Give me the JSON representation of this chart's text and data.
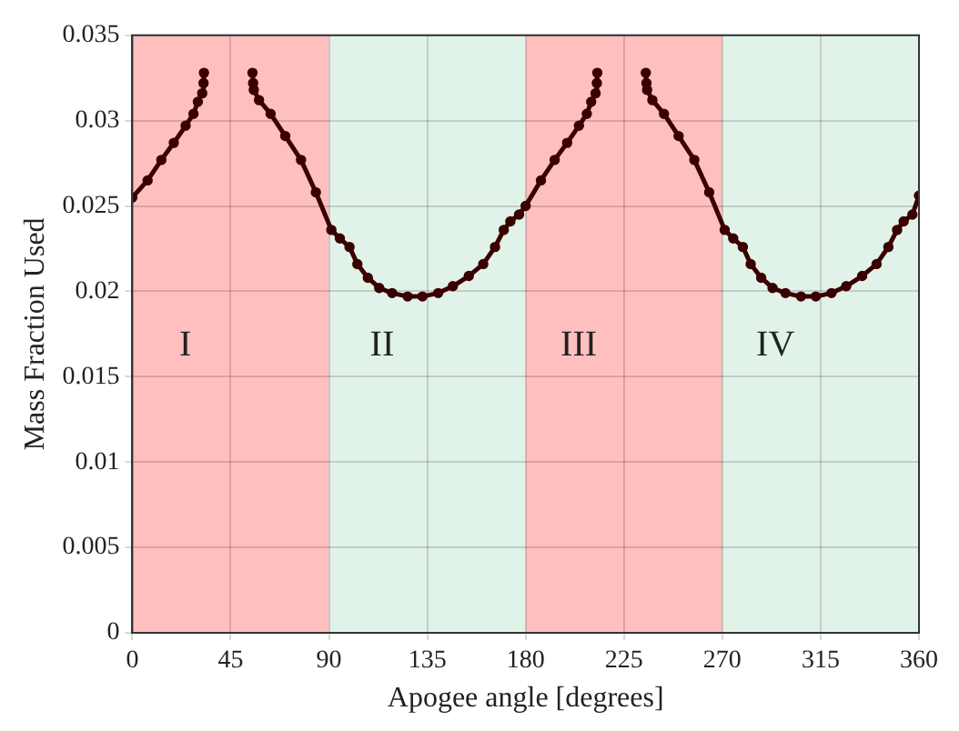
{
  "chart_data": {
    "type": "line",
    "xlabel": "Apogee angle [degrees]",
    "ylabel": "Mass Fraction Used",
    "xlim": [
      0,
      360
    ],
    "xticks": [
      0,
      45,
      90,
      135,
      180,
      225,
      270,
      315,
      360
    ],
    "ylim": [
      0,
      0.035
    ],
    "yticks": [
      0,
      0.005,
      0.01,
      0.015,
      0.02,
      0.025,
      0.03,
      0.035
    ],
    "grid": true,
    "legend": false,
    "marker": "circle",
    "line_style": "solid",
    "bands": [
      {
        "axis": "x",
        "from": 0,
        "to": 90,
        "label": "I",
        "color": "#ffbfbf"
      },
      {
        "axis": "x",
        "from": 90,
        "to": 180,
        "label": "II",
        "color": "#e1f3e9"
      },
      {
        "axis": "x",
        "from": 180,
        "to": 270,
        "label": "III",
        "color": "#ffbfbf"
      },
      {
        "axis": "x",
        "from": 270,
        "to": 360,
        "label": "IV",
        "color": "#e1f3e9"
      }
    ],
    "series": [
      {
        "color": "#3a0000",
        "x": [
          0,
          7,
          13.3,
          19,
          24.4,
          28,
          30,
          32,
          32.6,
          32.8,
          44,
          55,
          55.3,
          55.6,
          58,
          63.3,
          70,
          77.2,
          84,
          91.1,
          95,
          99.4,
          103,
          107.8,
          113,
          118.9,
          126,
          132.8,
          140,
          146.7,
          154,
          160.6,
          166,
          170,
          173,
          177,
          180,
          187,
          193.3,
          199,
          204.4,
          208,
          210,
          212,
          212.6,
          212.8,
          224,
          235,
          235.3,
          235.6,
          238,
          243.3,
          250,
          257.2,
          264,
          271.1,
          275,
          279.4,
          283,
          287.8,
          293,
          298.9,
          306,
          312.8,
          320,
          326.7,
          334,
          340.6,
          346,
          350,
          353,
          357,
          360
        ],
        "values": [
          0.0255,
          0.0265,
          0.0277,
          0.0287,
          0.0297,
          0.0304,
          0.0311,
          0.0316,
          0.0322,
          0.0328,
          null,
          0.0328,
          0.0322,
          0.0318,
          0.0312,
          0.0304,
          0.0291,
          0.0277,
          0.0258,
          0.0236,
          0.0231,
          0.0226,
          0.0216,
          0.0208,
          0.0202,
          0.0199,
          0.0197,
          0.0197,
          0.0199,
          0.0203,
          0.0209,
          0.0216,
          0.0226,
          0.0236,
          0.0241,
          0.0245,
          0.025,
          0.0265,
          0.0277,
          0.0287,
          0.0297,
          0.0304,
          0.0311,
          0.0316,
          0.0322,
          0.0328,
          null,
          0.0328,
          0.0322,
          0.0318,
          0.0312,
          0.0304,
          0.0291,
          0.0277,
          0.0258,
          0.0236,
          0.0231,
          0.0226,
          0.0216,
          0.0208,
          0.0202,
          0.0199,
          0.0197,
          0.0197,
          0.0199,
          0.0203,
          0.0209,
          0.0216,
          0.0226,
          0.0236,
          0.0241,
          0.0245,
          0.0256
        ]
      }
    ]
  }
}
